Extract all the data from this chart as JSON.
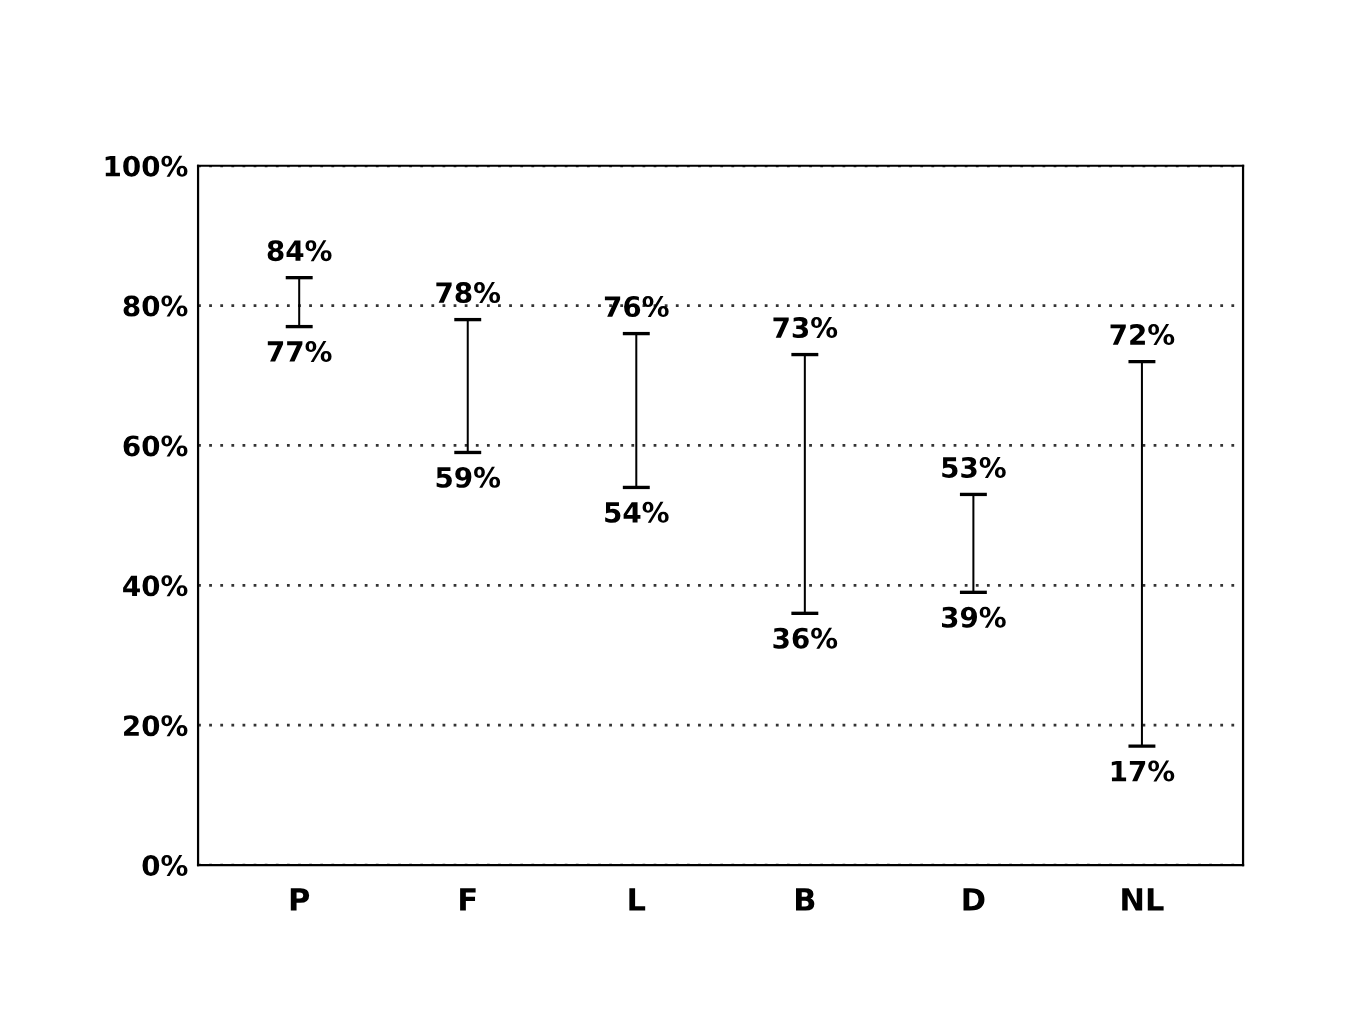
{
  "chart_data": {
    "type": "bar",
    "categories": [
      "P",
      "F",
      "L",
      "B",
      "D",
      "NL"
    ],
    "base": [
      77,
      59,
      54,
      36,
      39,
      17
    ],
    "values": [
      7,
      19,
      22,
      37,
      14,
      55
    ],
    "color": "#000000",
    "ylim": [
      0,
      100
    ],
    "yticks": [
      {
        "value": 0,
        "label": "0%"
      },
      {
        "value": 20,
        "label": "20%"
      },
      {
        "value": 40,
        "label": "40%"
      },
      {
        "value": 60,
        "label": "60%"
      },
      {
        "value": 80,
        "label": "80%"
      },
      {
        "value": 100,
        "label": "100%"
      }
    ],
    "grid": "y",
    "annotations": [
      "84%",
      "77%",
      "78%",
      "59%",
      "76%",
      "54%",
      "73%",
      "36%",
      "53%",
      "39%",
      "72%",
      "17%"
    ]
  }
}
